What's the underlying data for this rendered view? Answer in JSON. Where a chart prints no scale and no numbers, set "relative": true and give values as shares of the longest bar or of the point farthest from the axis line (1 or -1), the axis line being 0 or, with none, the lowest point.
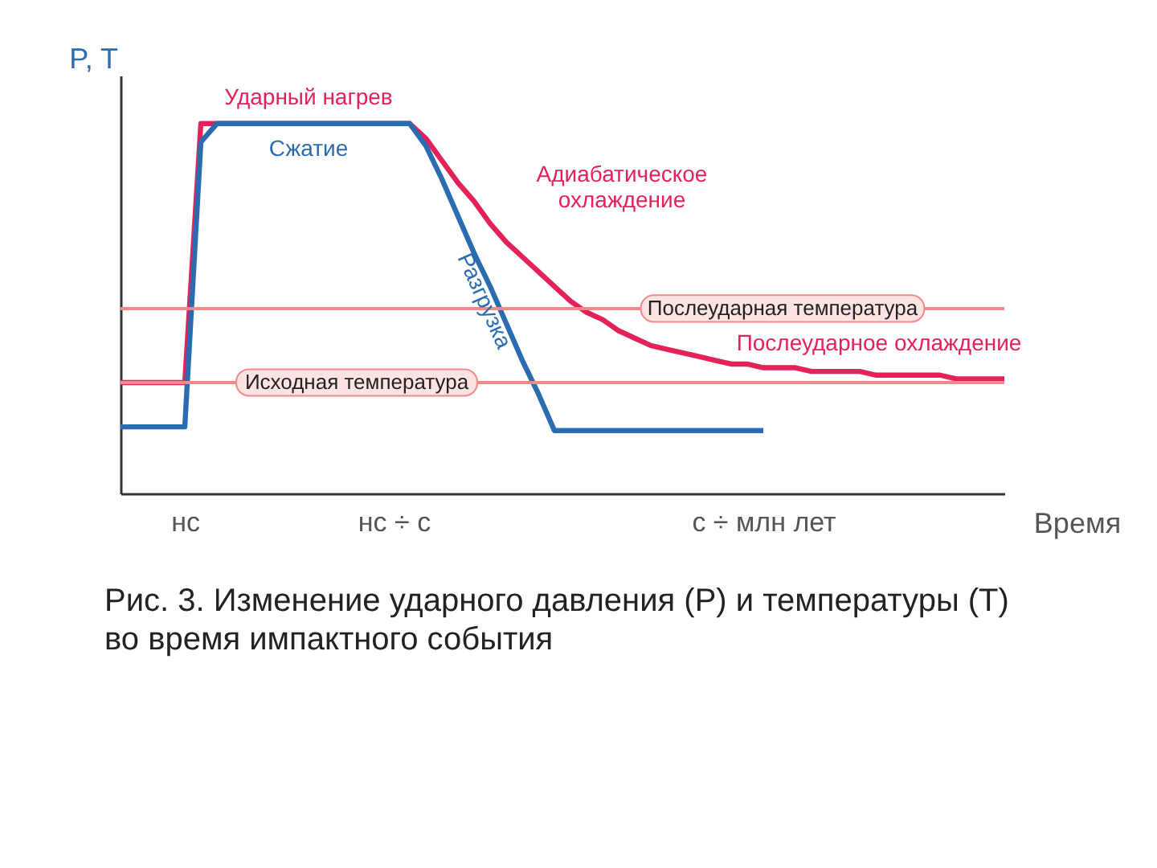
{
  "chart_data": {
    "type": "line",
    "relative": true,
    "ylabel": "P, T",
    "xlabel": "Время",
    "categories": [
      null,
      null,
      null,
      null,
      "нс",
      null,
      null,
      null,
      null,
      null,
      null,
      null,
      null,
      null,
      null,
      null,
      null,
      "нс ÷ с",
      null,
      null,
      null,
      null,
      null,
      null,
      null,
      null,
      null,
      null,
      null,
      null,
      null,
      null,
      null,
      null,
      null,
      null,
      null,
      null,
      null,
      null,
      "с ÷ млн лет",
      null,
      null,
      null,
      null,
      null,
      null,
      null,
      null,
      null,
      null,
      null,
      null,
      null,
      null,
      null
    ],
    "series": [
      {
        "color": "#e3225a",
        "values": [
          0.3,
          0.3,
          0.3,
          0.3,
          0.3,
          1,
          1,
          1,
          1,
          1,
          1,
          1,
          1,
          1,
          1,
          1,
          1,
          1,
          1,
          0.96,
          0.9,
          0.84,
          0.79,
          0.73,
          0.68,
          0.64,
          0.6,
          0.56,
          0.52,
          0.49,
          0.47,
          0.44,
          0.42,
          0.4,
          0.39,
          0.38,
          0.37,
          0.36,
          0.35,
          0.35,
          0.34,
          0.34,
          0.34,
          0.33,
          0.33,
          0.33,
          0.33,
          0.32,
          0.32,
          0.32,
          0.32,
          0.32,
          0.31,
          0.31,
          0.31,
          0.31
        ]
      },
      {
        "color": "#2b6cb0",
        "values": [
          0.18,
          0.18,
          0.18,
          0.18,
          0.18,
          0.95,
          1,
          1,
          1,
          1,
          1,
          1,
          1,
          1,
          1,
          1,
          1,
          1,
          1,
          0.94,
          0.85,
          0.75,
          0.65,
          0.56,
          0.46,
          0.36,
          0.27,
          0.17,
          0.17,
          0.17,
          0.17,
          0.17,
          0.17,
          0.17,
          0.17,
          0.17,
          0.17,
          0.17,
          0.17,
          0.17,
          0.17,
          null,
          null,
          null,
          null,
          null,
          null,
          null,
          null,
          null,
          null,
          null,
          null,
          null,
          null,
          null
        ]
      }
    ],
    "ref_lines": [
      {
        "axis": "y",
        "value": 0.5,
        "label": "Послеударная температура",
        "color": "#f08a8a"
      },
      {
        "axis": "y",
        "value": 0.3,
        "label": "Исходная температура",
        "color": "#f08a8a"
      }
    ],
    "annotations": [
      "Ударный нагрев",
      "Сжатие",
      "Адиабатическое охлаждение",
      "Разгрузка",
      "Послеударное охлаждение",
      "Рис. 3. Изменение ударного давления (P) и температуры (T) во время импактного события"
    ]
  }
}
